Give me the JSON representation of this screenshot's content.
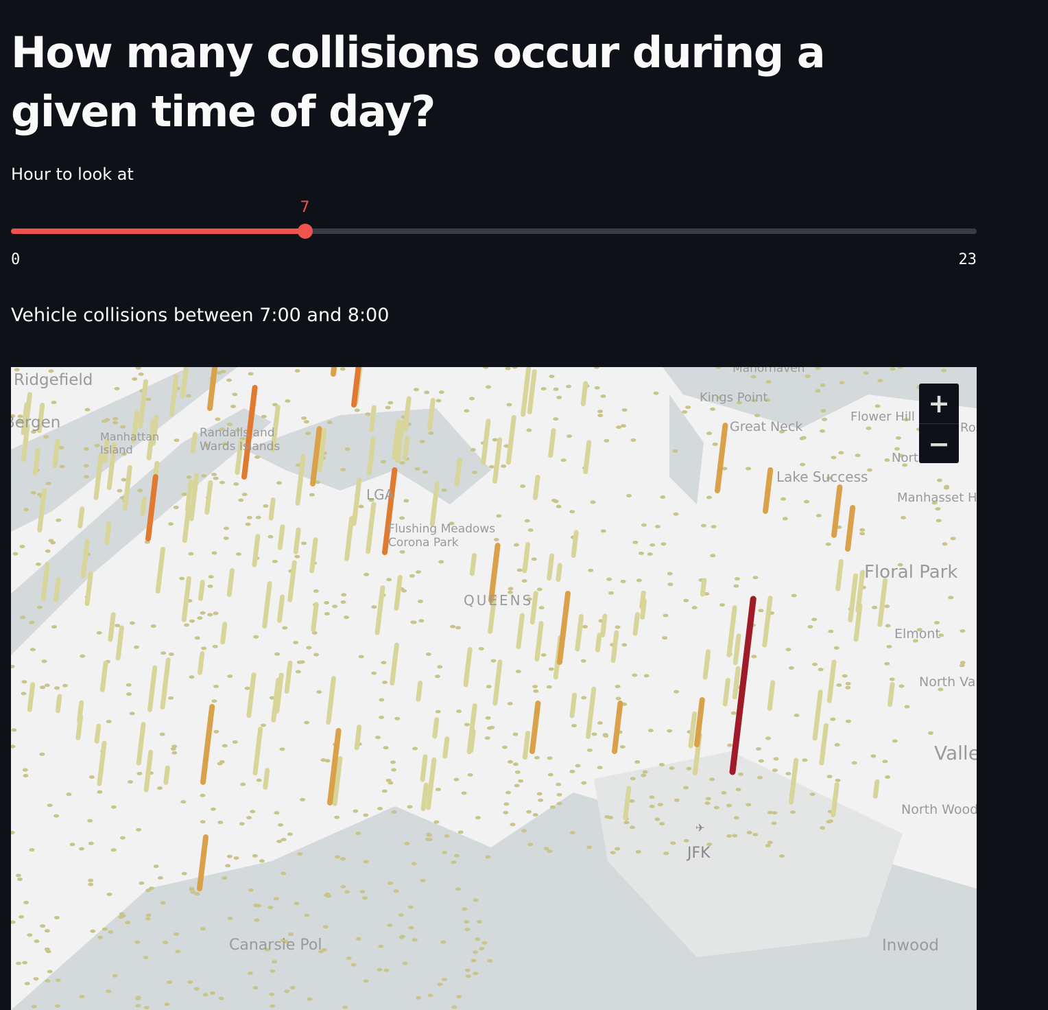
{
  "title": "How many collisions occur during a given time of day?",
  "slider": {
    "label": "Hour to look at",
    "value": 7,
    "min": 0,
    "max": 23,
    "min_label": "0",
    "max_label": "23",
    "value_label": "7",
    "accent": "#ef5350"
  },
  "subheader": "Vehicle collisions between 7:00 and 8:00",
  "map": {
    "labels": [
      "Ridgefield",
      "Bergen",
      "Manhattan Island",
      "Randalls and Wards Islands",
      "LGA",
      "Flushing Meadows Corona Park",
      "QUEENS",
      "Manorhaven",
      "Kings Point",
      "Great Neck",
      "Flower Hill",
      "Lake Success",
      "Manhasset Hills",
      "North Hills",
      "Floral Park",
      "Elmont",
      "North Valley Stream",
      "Valley Stream",
      "North Woodmere",
      "JFK",
      "Canarsie Pol",
      "Inwood",
      "Roslyn"
    ],
    "zoom_in": "+",
    "zoom_out": "−",
    "icons": {
      "airport": "airplane-icon"
    },
    "colors": {
      "land": "#f2f2f2",
      "water": "#d4d9dc",
      "low": "#d8d59a",
      "mid": "#d9a14a",
      "high": "#e07a30",
      "max": "#a01b28"
    }
  }
}
